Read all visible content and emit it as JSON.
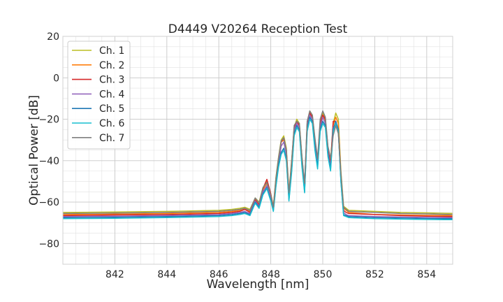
{
  "chart_data": {
    "type": "line",
    "title": "D4449 V20264 Reception Test",
    "xlabel": "Wavelength [nm]",
    "ylabel": "Optical Power [dB]",
    "xlim": [
      840,
      855
    ],
    "ylim": [
      -90,
      20
    ],
    "xticks": [
      842,
      844,
      846,
      848,
      850,
      852,
      854
    ],
    "yticks": [
      -80,
      -60,
      -40,
      -20,
      0,
      20
    ],
    "xtick_labels": [
      "842",
      "844",
      "846",
      "848",
      "850",
      "852",
      "854"
    ],
    "ytick_labels": [
      "−80",
      "−60",
      "−40",
      "−20",
      "0",
      "20"
    ],
    "grid": true,
    "minor_grid": true,
    "legend_position": "top-left",
    "series": [
      {
        "name": "Ch. 1",
        "color": "#bcbd22",
        "x": [
          840.0,
          842.0,
          844.0,
          846.0,
          846.5,
          846.8,
          847.0,
          847.2,
          847.4,
          847.55,
          847.7,
          847.85,
          848.0,
          848.1,
          848.2,
          848.3,
          848.4,
          848.5,
          848.6,
          848.7,
          848.8,
          848.9,
          849.0,
          849.1,
          849.2,
          849.3,
          849.4,
          849.5,
          849.6,
          849.7,
          849.8,
          849.9,
          850.0,
          850.1,
          850.2,
          850.3,
          850.4,
          850.5,
          850.6,
          850.7,
          850.8,
          850.9,
          851.0,
          852.0,
          853.0,
          854.0,
          855.0
        ],
        "y": [
          -65,
          -64.8,
          -64.5,
          -64,
          -63.5,
          -63,
          -62.5,
          -63.5,
          -58,
          -60,
          -53,
          -50,
          -56,
          -62,
          -48,
          -38,
          -30,
          -28,
          -34,
          -55,
          -40,
          -24,
          -20,
          -22,
          -38,
          -52,
          -22,
          -16,
          -18,
          -30,
          -40,
          -22,
          -17,
          -20,
          -34,
          -40,
          -22,
          -17,
          -20,
          -45,
          -62,
          -63,
          -64,
          -64.5,
          -65,
          -65.2,
          -65.5
        ]
      },
      {
        "name": "Ch. 2",
        "color": "#ff7f0e",
        "x": [
          840.0,
          842.0,
          844.0,
          846.0,
          846.5,
          846.8,
          847.0,
          847.2,
          847.4,
          847.55,
          847.7,
          847.85,
          848.0,
          848.1,
          848.2,
          848.3,
          848.4,
          848.5,
          848.6,
          848.7,
          848.8,
          848.9,
          849.0,
          849.1,
          849.2,
          849.3,
          849.4,
          849.5,
          849.6,
          849.7,
          849.8,
          849.9,
          850.0,
          850.1,
          850.2,
          850.3,
          850.4,
          850.5,
          850.6,
          850.7,
          850.8,
          850.9,
          851.0,
          852.0,
          853.0,
          854.0,
          855.0
        ],
        "y": [
          -66,
          -65.8,
          -65.5,
          -65,
          -64.5,
          -64,
          -63,
          -64.5,
          -58.5,
          -61,
          -54,
          -51,
          -57,
          -62,
          -49,
          -39,
          -31,
          -30,
          -36,
          -56,
          -42,
          -25,
          -21,
          -23,
          -40,
          -53,
          -23,
          -17,
          -19,
          -32,
          -41,
          -23,
          -18,
          -21,
          -35,
          -41,
          -23,
          -19,
          -22,
          -47,
          -63,
          -64,
          -65,
          -66,
          -66.2,
          -66.4,
          -66.5
        ]
      },
      {
        "name": "Ch. 3",
        "color": "#d62728",
        "x": [
          840.0,
          842.0,
          844.0,
          846.0,
          846.5,
          846.8,
          847.0,
          847.2,
          847.4,
          847.55,
          847.7,
          847.85,
          848.0,
          848.1,
          848.2,
          848.3,
          848.4,
          848.5,
          848.6,
          848.7,
          848.8,
          848.9,
          849.0,
          849.1,
          849.2,
          849.3,
          849.4,
          849.5,
          849.6,
          849.7,
          849.8,
          849.9,
          850.0,
          850.1,
          850.2,
          850.3,
          850.4,
          850.5,
          850.6,
          850.7,
          850.8,
          850.9,
          851.0,
          852.0,
          853.0,
          854.0,
          855.0
        ],
        "y": [
          -66.5,
          -66.2,
          -66,
          -65.5,
          -65,
          -64.5,
          -63.5,
          -65,
          -59,
          -61.5,
          -53.5,
          -49,
          -56,
          -63,
          -50,
          -40,
          -31,
          -29,
          -35,
          -57,
          -41,
          -24,
          -21,
          -23,
          -39,
          -52,
          -22,
          -17,
          -19,
          -31,
          -40,
          -22,
          -18,
          -20,
          -34,
          -42,
          -21,
          -21,
          -25,
          -48,
          -64,
          -65,
          -65.5,
          -66,
          -66.5,
          -66.8,
          -67
        ]
      },
      {
        "name": "Ch. 4",
        "color": "#9467bd",
        "x": [
          840.0,
          842.0,
          844.0,
          846.0,
          846.5,
          846.8,
          847.0,
          847.2,
          847.4,
          847.55,
          847.7,
          847.85,
          848.0,
          848.1,
          848.2,
          848.3,
          848.4,
          848.5,
          848.6,
          848.7,
          848.8,
          848.9,
          849.0,
          849.1,
          849.2,
          849.3,
          849.4,
          849.5,
          849.6,
          849.7,
          849.8,
          849.9,
          850.0,
          850.1,
          850.2,
          850.3,
          850.4,
          850.5,
          850.6,
          850.7,
          850.8,
          850.9,
          851.0,
          852.0,
          853.0,
          854.0,
          855.0
        ],
        "y": [
          -67,
          -66.8,
          -66.5,
          -66,
          -65.5,
          -65,
          -64.5,
          -65.5,
          -59.5,
          -62,
          -55,
          -52,
          -58,
          -63.5,
          -51,
          -41,
          -33,
          -31,
          -37,
          -58,
          -43,
          -25,
          -22,
          -24,
          -41,
          -54,
          -24,
          -18,
          -20,
          -33,
          -42,
          -24,
          -19,
          -22,
          -36,
          -43,
          -24,
          -22,
          -26,
          -49,
          -65,
          -66,
          -66.5,
          -67,
          -67.2,
          -67.4,
          -67.5
        ]
      },
      {
        "name": "Ch. 5",
        "color": "#1f77b4",
        "x": [
          840.0,
          842.0,
          844.0,
          846.0,
          846.5,
          846.8,
          847.0,
          847.2,
          847.4,
          847.55,
          847.7,
          847.85,
          848.0,
          848.1,
          848.2,
          848.3,
          848.4,
          848.5,
          848.6,
          848.7,
          848.8,
          848.9,
          849.0,
          849.1,
          849.2,
          849.3,
          849.4,
          849.5,
          849.6,
          849.7,
          849.8,
          849.9,
          850.0,
          850.1,
          850.2,
          850.3,
          850.4,
          850.5,
          850.6,
          850.7,
          850.8,
          850.9,
          851.0,
          852.0,
          853.0,
          854.0,
          855.0
        ],
        "y": [
          -67.5,
          -67.3,
          -67,
          -66.5,
          -66,
          -65.5,
          -65,
          -66,
          -60,
          -62.5,
          -56,
          -53,
          -59,
          -64,
          -52,
          -42,
          -36,
          -34,
          -39,
          -59,
          -45,
          -27,
          -23,
          -25,
          -42,
          -55,
          -25,
          -19,
          -21,
          -34,
          -43,
          -25,
          -21,
          -23,
          -37,
          -44,
          -25,
          -21,
          -25,
          -50,
          -66,
          -66.5,
          -67,
          -67.5,
          -67.7,
          -67.9,
          -68
        ]
      },
      {
        "name": "Ch. 6",
        "color": "#17becf",
        "x": [
          840.0,
          842.0,
          844.0,
          846.0,
          846.5,
          846.8,
          847.0,
          847.2,
          847.4,
          847.55,
          847.7,
          847.85,
          848.0,
          848.1,
          848.2,
          848.3,
          848.4,
          848.5,
          848.6,
          848.7,
          848.8,
          848.9,
          849.0,
          849.1,
          849.2,
          849.3,
          849.4,
          849.5,
          849.6,
          849.7,
          849.8,
          849.9,
          850.0,
          850.1,
          850.2,
          850.3,
          850.4,
          850.5,
          850.6,
          850.7,
          850.8,
          850.9,
          851.0,
          852.0,
          853.0,
          854.0,
          855.0
        ],
        "y": [
          -68,
          -67.8,
          -67.5,
          -67,
          -66.5,
          -66,
          -65.5,
          -66.5,
          -60.5,
          -63,
          -56.5,
          -53.5,
          -59.5,
          -64.5,
          -52.5,
          -43,
          -37,
          -35,
          -40,
          -59.5,
          -46,
          -28,
          -24,
          -26,
          -43,
          -55.5,
          -26,
          -20,
          -22,
          -35,
          -44,
          -26,
          -22,
          -24,
          -38,
          -45,
          -26,
          -22,
          -26,
          -50.5,
          -66.5,
          -67,
          -67.5,
          -68,
          -68.2,
          -68.4,
          -68.5
        ]
      },
      {
        "name": "Ch. 7",
        "color": "#7f7f7f",
        "x": [
          840.0,
          842.0,
          844.0,
          846.0,
          846.5,
          846.8,
          847.0,
          847.2,
          847.4,
          847.55,
          847.7,
          847.85,
          848.0,
          848.1,
          848.2,
          848.3,
          848.4,
          848.5,
          848.6,
          848.7,
          848.8,
          848.9,
          849.0,
          849.1,
          849.2,
          849.3,
          849.4,
          849.5,
          849.6,
          849.7,
          849.8,
          849.9,
          850.0,
          850.1,
          850.2,
          850.3,
          850.4,
          850.5,
          850.6,
          850.7,
          850.8,
          850.9,
          851.0,
          852.0,
          853.0,
          854.0,
          855.0
        ],
        "y": [
          -65.5,
          -65.3,
          -65,
          -64.5,
          -64,
          -63.5,
          -63,
          -64,
          -58,
          -60.5,
          -53,
          -50.5,
          -56.5,
          -62.5,
          -48.5,
          -38.5,
          -30.5,
          -29,
          -35,
          -55.5,
          -41,
          -23,
          -21,
          -22,
          -38,
          -51,
          -21,
          -16,
          -18,
          -29,
          -39,
          -20,
          -16,
          -19,
          -33,
          -39,
          -28,
          -23,
          -27,
          -46,
          -62.5,
          -63.5,
          -64.5,
          -65,
          -65.5,
          -65.7,
          -66
        ]
      }
    ]
  }
}
